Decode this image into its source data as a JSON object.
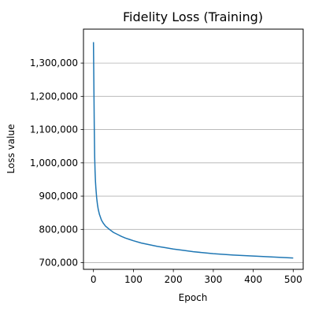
{
  "chart_data": {
    "type": "line",
    "title": "Fidelity Loss (Training)",
    "xlabel": "Epoch",
    "ylabel": "Loss value",
    "xlim": [
      -25,
      525
    ],
    "ylim": [
      680000,
      1402000
    ],
    "xticks": [
      0,
      100,
      200,
      300,
      400,
      500
    ],
    "xtick_labels": [
      "0",
      "100",
      "200",
      "300",
      "400",
      "500"
    ],
    "yticks": [
      700000,
      800000,
      900000,
      1000000,
      1100000,
      1200000,
      1300000
    ],
    "ytick_labels": [
      "700,000",
      "800,000",
      "900,000",
      "1,000,000",
      "1,100,000",
      "1,200,000",
      "1,300,000"
    ],
    "grid": {
      "y": true,
      "x": false
    },
    "series": [
      {
        "color": "#1f77b4",
        "x": [
          0,
          1,
          2,
          3,
          4,
          5,
          6,
          8,
          10,
          12,
          15,
          20,
          25,
          30,
          35,
          40,
          50,
          60,
          70,
          80,
          90,
          100,
          120,
          140,
          160,
          180,
          200,
          225,
          250,
          275,
          300,
          350,
          400,
          450,
          500
        ],
        "y": [
          1363000,
          1240000,
          1110000,
          1020000,
          975000,
          945000,
          925000,
          895000,
          875000,
          860000,
          845000,
          828000,
          818000,
          810000,
          805000,
          800000,
          791000,
          785000,
          779000,
          774000,
          770000,
          766000,
          759000,
          754000,
          749000,
          745000,
          741000,
          737000,
          733000,
          730000,
          727000,
          723000,
          720000,
          717000,
          714000
        ]
      }
    ]
  }
}
